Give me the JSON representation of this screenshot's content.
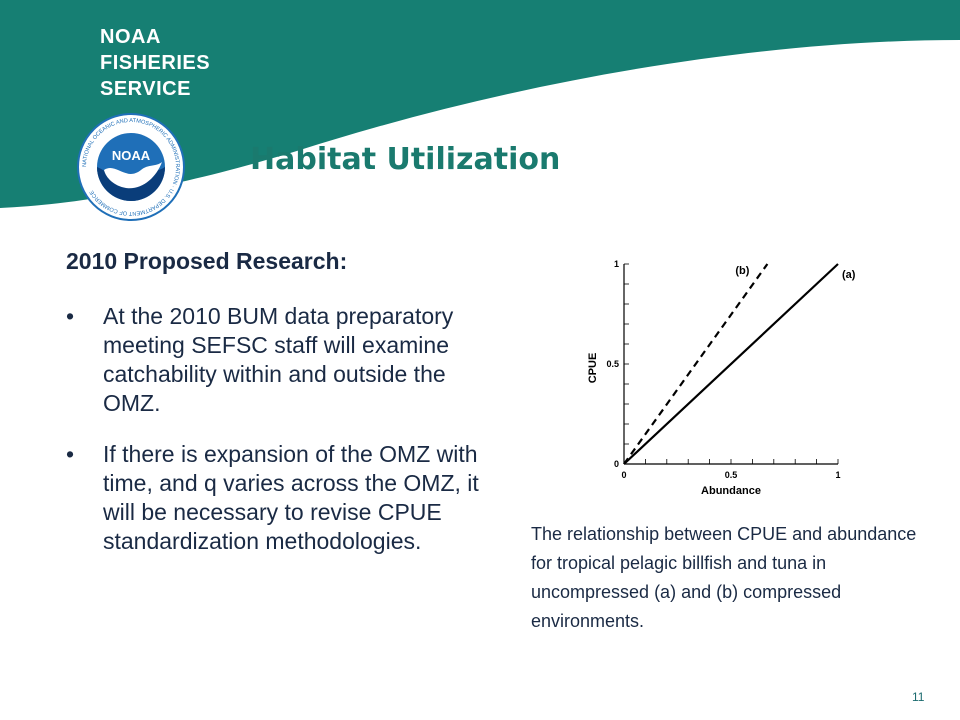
{
  "brand": {
    "line1": "NOAA",
    "line2": "FISHERIES",
    "line3": "SERVICE"
  },
  "logo": {
    "center_text": "NOAA",
    "ring_text": "NATIONAL OCEANIC AND ATMOSPHERIC ADMINISTRATION · U.S. DEPARTMENT OF COMMERCE"
  },
  "title": "Habitat Utilization",
  "heading": "2010 Proposed Research:",
  "bullets": [
    {
      "marker": "•",
      "text": "At the 2010 BUM data preparatory meeting SEFSC staff will examine catchability within and outside the OMZ."
    },
    {
      "marker": "•",
      "text": "If there is expansion of the OMZ with time, and q varies across the OMZ, it will be necessary to revise CPUE standardization methodologies."
    }
  ],
  "caption": "The relationship between CPUE and abundance for tropical pelagic billfish and tuna in uncompressed (a) and (b) compressed environments.",
  "page_number": "11",
  "colors": {
    "teal": "#167f73",
    "title": "#1a7a6e",
    "text": "#1a2a44",
    "logo_blue": "#1f6fb8"
  },
  "chart_data": {
    "type": "line",
    "xlabel": "Abundance",
    "ylabel": "CPUE",
    "xlim": [
      0,
      1
    ],
    "ylim": [
      0,
      1
    ],
    "x_ticks": [
      "0",
      "0.5",
      "1"
    ],
    "y_ticks": [
      "0",
      "0.5",
      "1"
    ],
    "grid": false,
    "series": [
      {
        "name": "(a)",
        "style": "solid",
        "x": [
          0,
          1
        ],
        "y": [
          0,
          1
        ]
      },
      {
        "name": "(b)",
        "style": "dashed",
        "x": [
          0,
          0.67
        ],
        "y": [
          0,
          1
        ]
      }
    ]
  }
}
